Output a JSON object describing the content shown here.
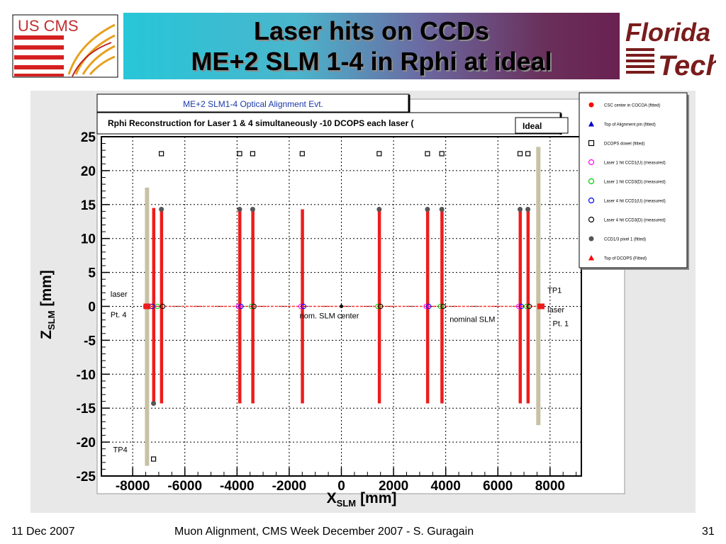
{
  "title": {
    "line1": "Laser hits on CCDs",
    "line2": "ME+2 SLM 1-4 in Rphi at ideal"
  },
  "logos": {
    "left_text": "US CMS",
    "right_line1": "Florida",
    "right_line2": "Tech"
  },
  "footer": {
    "date": "11 Dec 2007",
    "center": "Muon Alignment, CMS Week December 2007  - S. Guragain",
    "page": "31"
  },
  "chart_data": {
    "type": "scatter",
    "event_title": "ME+2 SLM1-4 Optical Alignment Evt.",
    "subtitle": "Rphi Reconstruction for Laser 1 & 4 simultaneously -10 DCOPS each laser (",
    "badge": "Ideal",
    "xlabel": "X",
    "xlabel_sub": "SLM",
    "xlabel_unit": "[mm]",
    "ylabel": "Z",
    "ylabel_sub": "SLM",
    "ylabel_unit": "[mm]",
    "xlim": [
      -9200,
      9200
    ],
    "ylim": [
      -25,
      25
    ],
    "x_ticks": [
      -8000,
      -6000,
      -4000,
      -2000,
      0,
      2000,
      4000,
      6000,
      8000
    ],
    "y_ticks": [
      25,
      20,
      15,
      10,
      5,
      0,
      -5,
      -10,
      -15,
      -20,
      -25
    ],
    "grid": true,
    "legend_position": "right",
    "legend": [
      {
        "label": "CSC center in COCOA (fitted)",
        "marker": "filled-circle",
        "color": "#ff0000"
      },
      {
        "label": "Top of Alignment pin (fitted)",
        "marker": "filled-triangle",
        "color": "#0000cc"
      },
      {
        "label": "DCOPS dowel (fitted)",
        "marker": "open-square",
        "color": "#000000"
      },
      {
        "label": "Laser 1 hit CCD1(U) (measured)",
        "marker": "open-circle",
        "color": "#ff00ff"
      },
      {
        "label": "Laser 1 hit CCD3(D) (measured)",
        "marker": "open-circle",
        "color": "#00cc00"
      },
      {
        "label": "Laser 4 hit CCD1(U) (measured)",
        "marker": "open-circle",
        "color": "#0000ff"
      },
      {
        "label": "Laser 4 hit CCD3(D) (measured)",
        "marker": "open-circle",
        "color": "#000000"
      },
      {
        "label": "CCD1/3 pixel 1 (fitted)",
        "marker": "filled-circle",
        "color": "#555555"
      },
      {
        "label": "Top of DCOPS (Fitted)",
        "marker": "filled-triangle",
        "color": "#ff0000"
      }
    ],
    "ccd_bars": [
      {
        "x": -7200,
        "y_top": 14.5,
        "y_bottom": -14.3
      },
      {
        "x": -6900,
        "y_top": 14.3,
        "y_bottom": -14.3
      },
      {
        "x": -3900,
        "y_top": 14.3,
        "y_bottom": -14.3
      },
      {
        "x": -3400,
        "y_top": 14.3,
        "y_bottom": -14.3
      },
      {
        "x": -1500,
        "y_top": 14.3,
        "y_bottom": -14.3
      },
      {
        "x": 1450,
        "y_top": 14.3,
        "y_bottom": -14.3
      },
      {
        "x": 3300,
        "y_top": 14.3,
        "y_bottom": -14.3
      },
      {
        "x": 3850,
        "y_top": 14.3,
        "y_bottom": -14.3
      },
      {
        "x": 6850,
        "y_top": 14.3,
        "y_bottom": -14.3
      },
      {
        "x": 7150,
        "y_top": 14.3,
        "y_bottom": -14.3
      }
    ],
    "pixel1_points": [
      {
        "x": -6900,
        "y": 14.3
      },
      {
        "x": -7200,
        "y": -14.3
      },
      {
        "x": -3900,
        "y": 14.3
      },
      {
        "x": -3400,
        "y": 14.3
      },
      {
        "x": 1450,
        "y": 14.3
      },
      {
        "x": 3300,
        "y": 14.3
      },
      {
        "x": 3850,
        "y": 14.3
      },
      {
        "x": 6850,
        "y": 14.3
      },
      {
        "x": 7150,
        "y": 14.3
      }
    ],
    "dcops_dowels": [
      {
        "x": -6900,
        "y": 22.5
      },
      {
        "x": -3900,
        "y": 22.5
      },
      {
        "x": -3400,
        "y": 22.5
      },
      {
        "x": -1500,
        "y": 22.5
      },
      {
        "x": 1450,
        "y": 22.5
      },
      {
        "x": 3300,
        "y": 22.5
      },
      {
        "x": 3850,
        "y": 22.5
      },
      {
        "x": 6850,
        "y": 22.5
      },
      {
        "x": 7150,
        "y": 22.5
      },
      {
        "x": -7200,
        "y": -22.5
      }
    ],
    "hit_points_x": [
      -7500,
      -7250,
      -7050,
      -6850,
      -3950,
      -3850,
      -3450,
      -3350,
      -1550,
      -1450,
      1400,
      1500,
      3250,
      3350,
      3800,
      3900,
      6800,
      6900,
      7100,
      7200
    ],
    "frame_bars": [
      {
        "x": -7450,
        "y_top": 17.5,
        "y_bottom": -23.5
      },
      {
        "x": 7550,
        "y_top": 23.5,
        "y_bottom": -17.5
      }
    ],
    "laser_markers": [
      {
        "x": -7450,
        "y": 0
      },
      {
        "x": 7650,
        "y": 0
      }
    ],
    "annotations": [
      {
        "text": "laser",
        "x": -8850,
        "y": 1.4
      },
      {
        "text": "Pt. 4",
        "x": -8850,
        "y": -1.6
      },
      {
        "text": "TP4",
        "x": -8750,
        "y": -21.5
      },
      {
        "text": "TP1",
        "x": 7900,
        "y": 2.0
      },
      {
        "text": "laser",
        "x": 7900,
        "y": -0.9
      },
      {
        "text": "Pt. 1",
        "x": 8100,
        "y": -2.9
      },
      {
        "text": "nom. SLM center",
        "x": -1600,
        "y": -1.8
      },
      {
        "text": "nominal SLM",
        "x": 4150,
        "y": -2.3
      }
    ]
  }
}
